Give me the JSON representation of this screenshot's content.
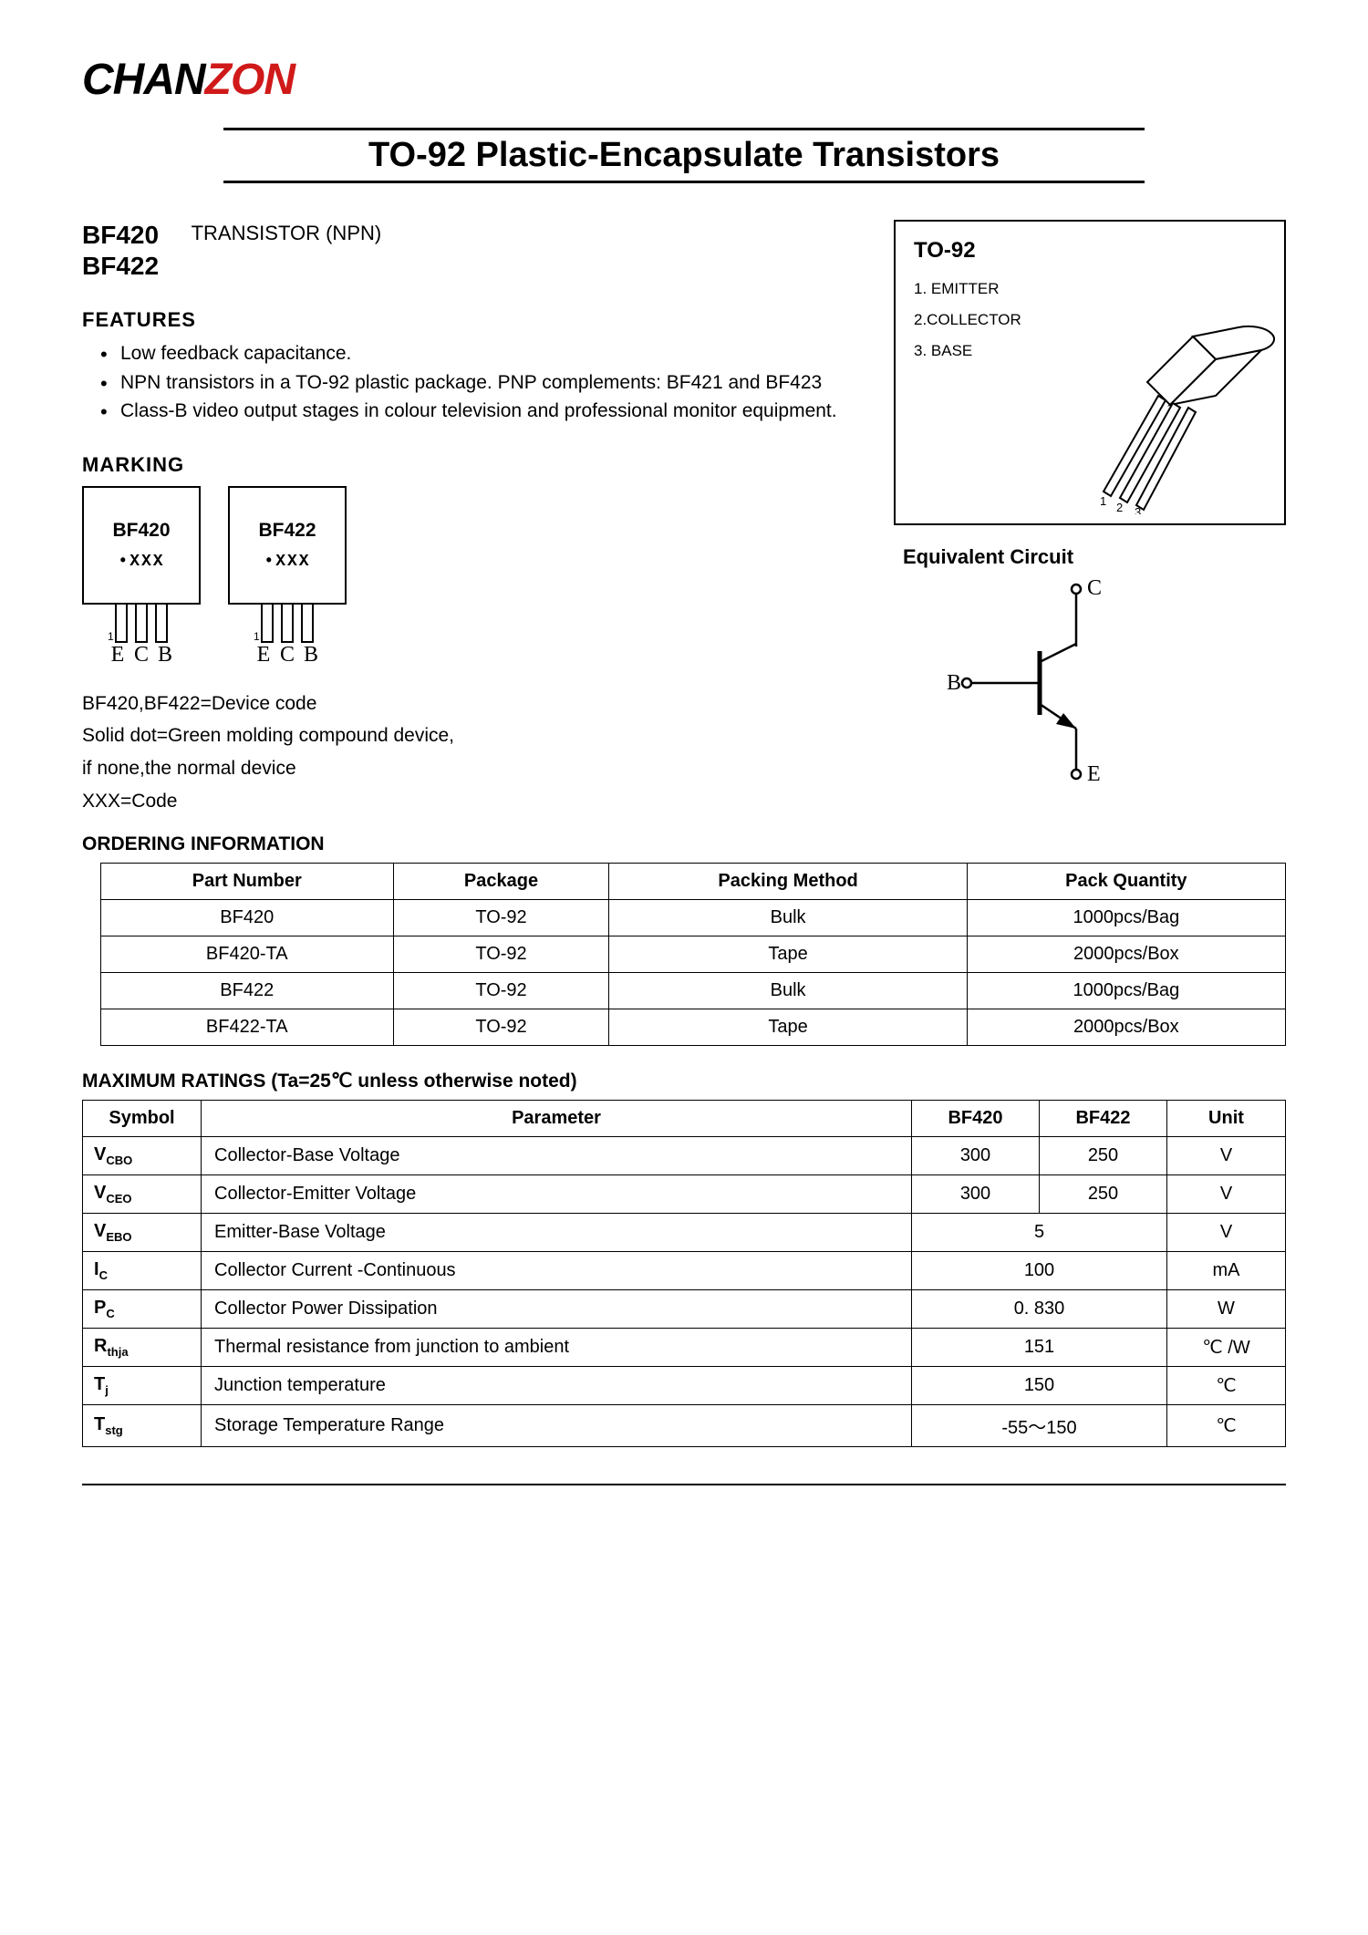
{
  "logo": {
    "part1": "CHAN",
    "part2": "ZON"
  },
  "title": "TO-92 Plastic-Encapsulate Transistors",
  "parts": [
    "BF420",
    "BF422"
  ],
  "transistor_type": "TRANSISTOR (NPN)",
  "features_header": "FEATURES",
  "features": [
    "Low feedback capacitance.",
    "NPN transistors in a TO-92 plastic package. PNP complements: BF421 and BF423",
    "Class-B video output stages in colour television and professional monitor equipment."
  ],
  "marking_header": "MARKING",
  "marking": {
    "boxes": [
      {
        "code": "BF420",
        "sub": "•XXX"
      },
      {
        "code": "BF422",
        "sub": "•XXX"
      }
    ],
    "leg_labels": [
      "E",
      "C",
      "B"
    ],
    "pin1": "1",
    "notes": [
      "BF420,BF422=Device code",
      "Solid dot=Green molding compound device,",
      "if none,the normal device",
      "XXX=Code"
    ]
  },
  "package_box": {
    "title": "TO-92",
    "pins": [
      "1. EMITTER",
      "2.COLLECTOR",
      "3. BASE"
    ],
    "pin_nums": [
      "1",
      "2",
      "3"
    ]
  },
  "equiv_header": "Equivalent Circuit",
  "equiv_labels": {
    "c": "C",
    "b": "B",
    "e": "E"
  },
  "ordering_header": "ORDERING INFORMATION",
  "ordering": {
    "columns": [
      "Part Number",
      "Package",
      "Packing Method",
      "Pack Quantity"
    ],
    "rows": [
      [
        "BF420",
        "TO-92",
        "Bulk",
        "1000pcs/Bag"
      ],
      [
        "BF420-TA",
        "TO-92",
        "Tape",
        "2000pcs/Box"
      ],
      [
        "BF422",
        "TO-92",
        "Bulk",
        "1000pcs/Bag"
      ],
      [
        "BF422-TA",
        "TO-92",
        "Tape",
        "2000pcs/Box"
      ]
    ]
  },
  "ratings_header": "MAXIMUM RATINGS (Ta=25℃ unless otherwise noted)",
  "ratings": {
    "columns": [
      "Symbol",
      "Parameter",
      "BF420",
      "BF422",
      "Unit"
    ],
    "rows": [
      {
        "sym": "V",
        "sub": "CBO",
        "param": "Collector-Base Voltage",
        "v1": "300",
        "v2": "250",
        "unit": "V",
        "merged": false
      },
      {
        "sym": "V",
        "sub": "CEO",
        "param": "Collector-Emitter Voltage",
        "v1": "300",
        "v2": "250",
        "unit": "V",
        "merged": false
      },
      {
        "sym": "V",
        "sub": "EBO",
        "param": "Emitter-Base Voltage",
        "v1": "5",
        "unit": "V",
        "merged": true
      },
      {
        "sym": "I",
        "sub": "C",
        "param": "Collector Current -Continuous",
        "v1": "100",
        "unit": "mA",
        "merged": true
      },
      {
        "sym": "P",
        "sub": "C",
        "param": "Collector Power Dissipation",
        "v1": "0. 830",
        "unit": "W",
        "merged": true
      },
      {
        "sym": "R",
        "sub": "thja",
        "param": "Thermal resistance from junction to ambient",
        "v1": "151",
        "unit": "℃ /W",
        "merged": true
      },
      {
        "sym": "T",
        "sub": "j",
        "param": "Junction temperature",
        "v1": "150",
        "unit": "℃",
        "merged": true
      },
      {
        "sym": "T",
        "sub": "stg",
        "param": "Storage Temperature Range",
        "v1": "-55～150",
        "unit": "℃",
        "merged": true
      }
    ]
  },
  "colors": {
    "brand_black": "#000000",
    "brand_red": "#d01919",
    "border": "#000000",
    "text": "#000000",
    "bg": "#ffffff"
  }
}
